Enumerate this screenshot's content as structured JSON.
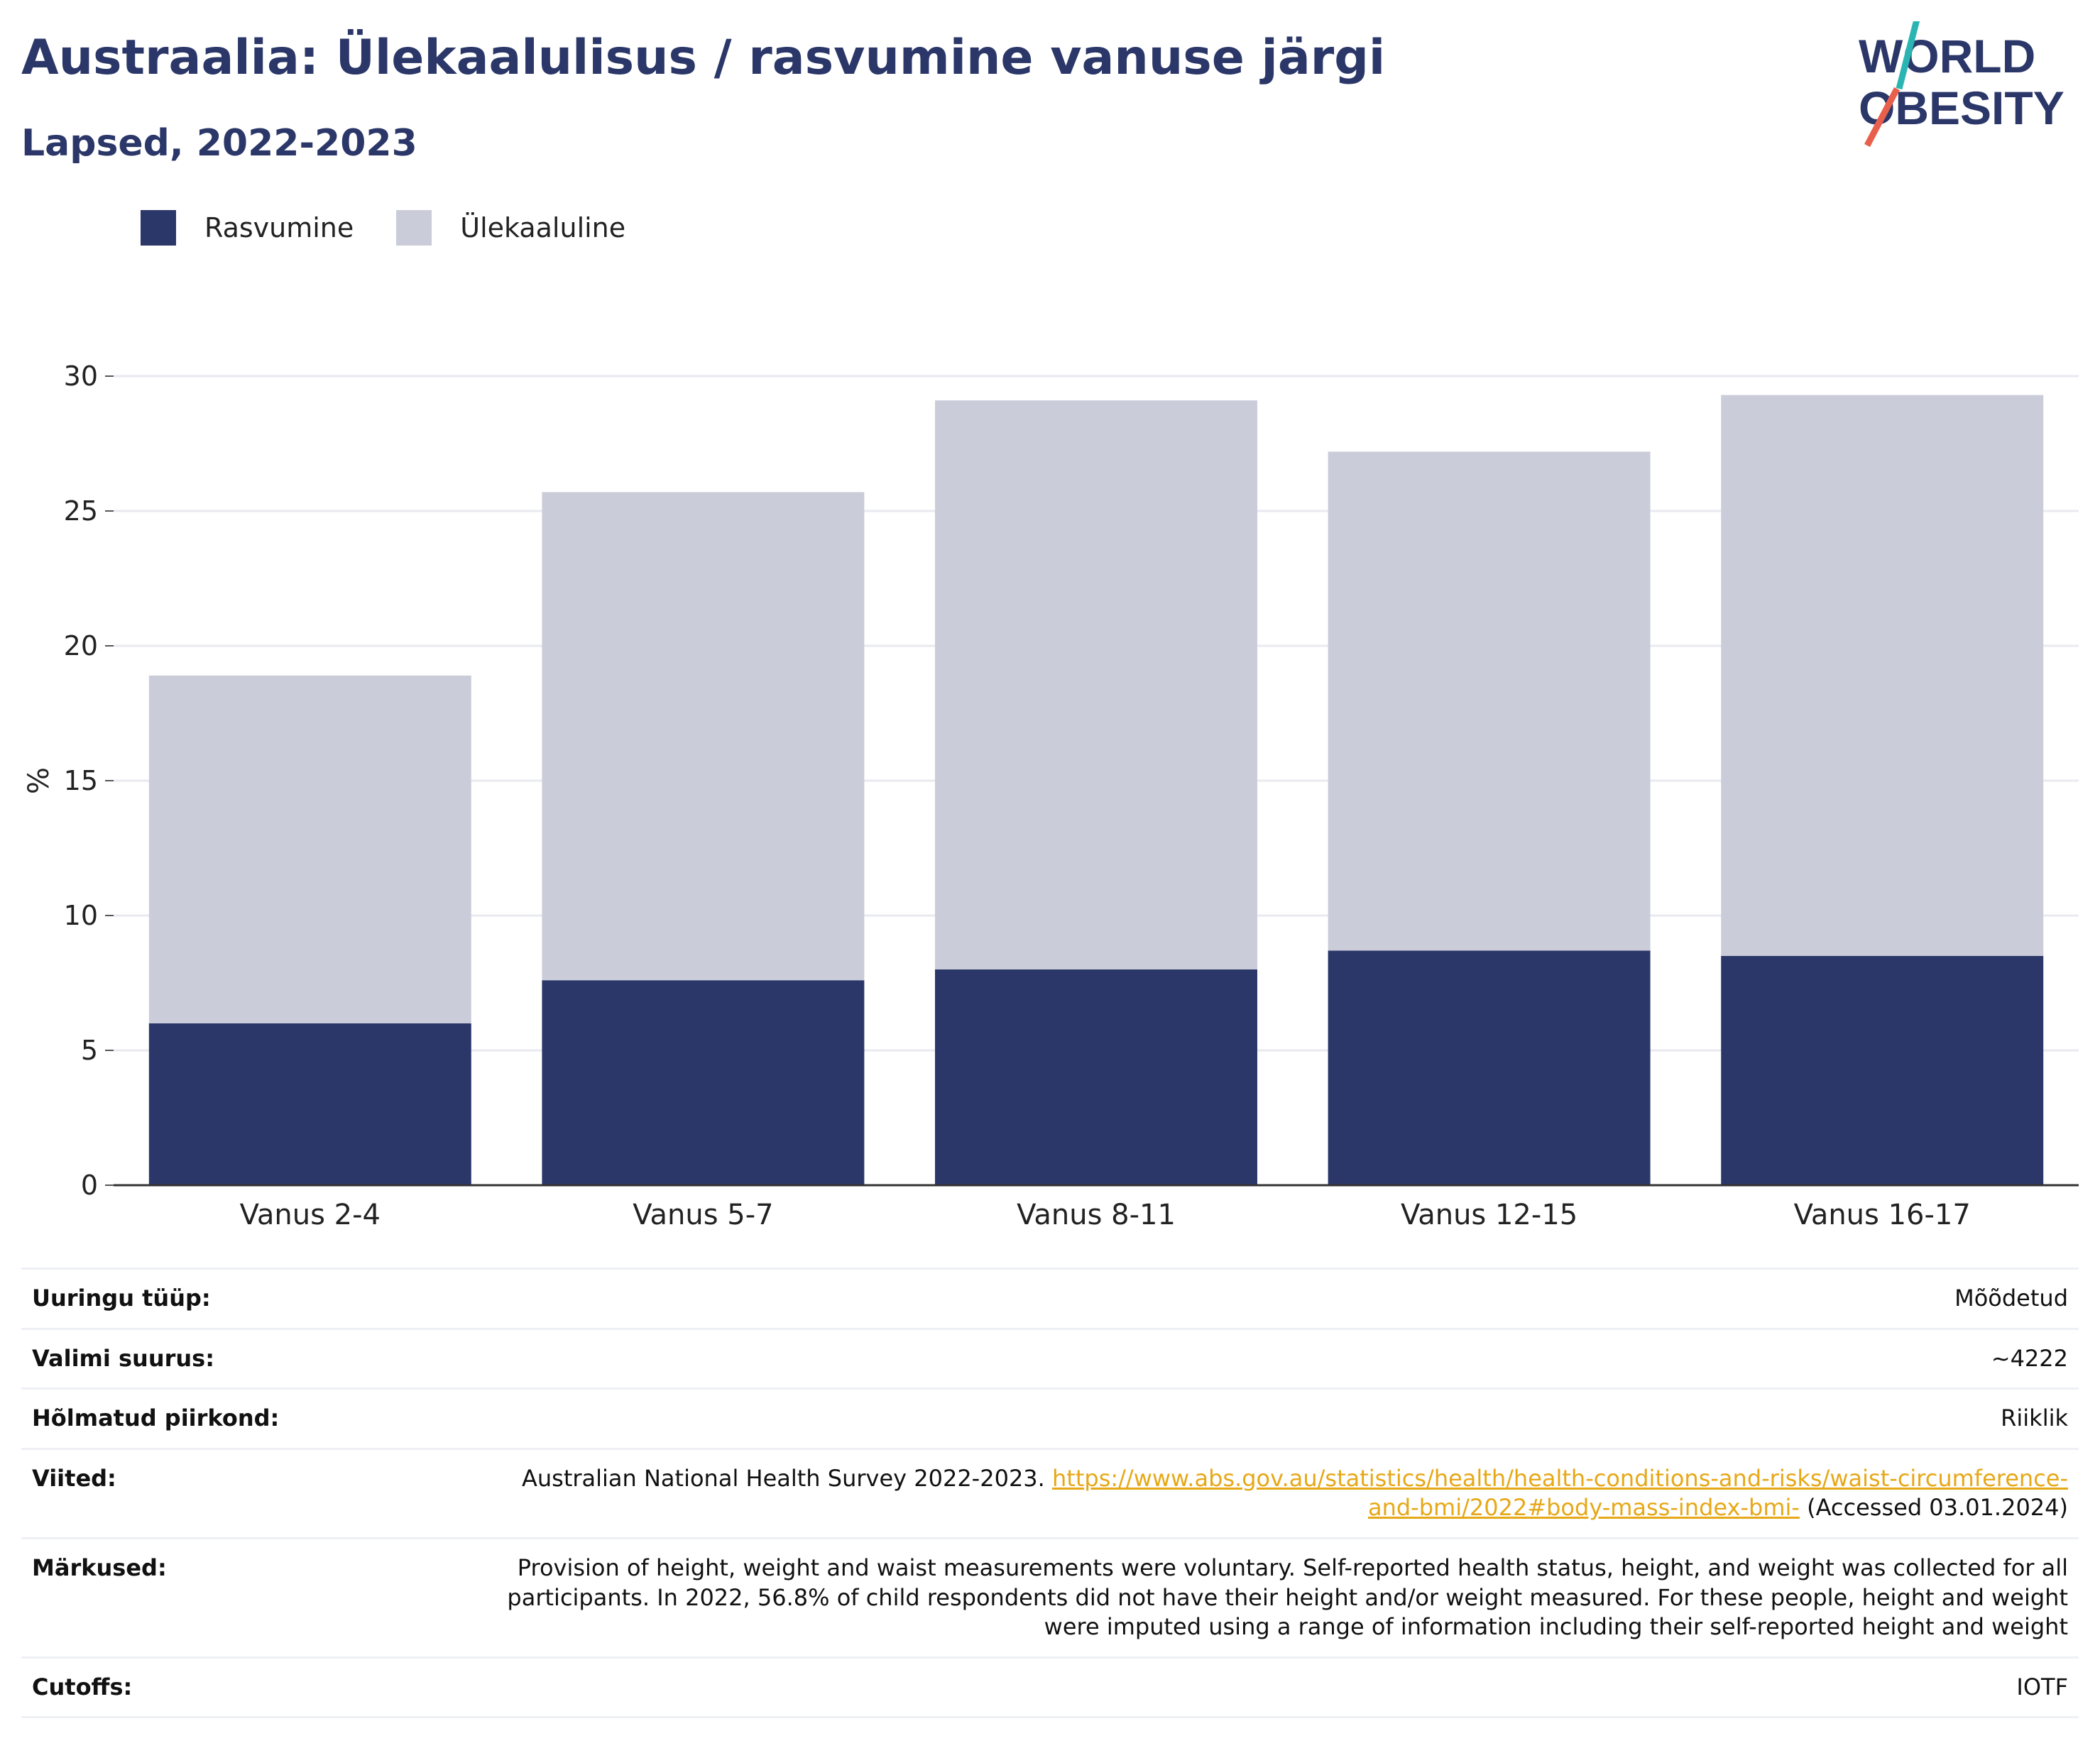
{
  "header": {
    "title": "Austraalia: Ülekaalulisus / rasvumine vanuse järgi",
    "subtitle": "Lapsed, 2022-2023"
  },
  "logo": {
    "line1": "WORLD",
    "line2": "OBESITY",
    "slash_colors": [
      "#2bb5b2",
      "#e8604c"
    ]
  },
  "legend": [
    {
      "label": "Rasvumine",
      "color": "#2b3768"
    },
    {
      "label": "Ülekaaluline",
      "color": "#cacdd9"
    }
  ],
  "chart_data": {
    "type": "bar",
    "stacked": true,
    "categories": [
      "Vanus 2-4",
      "Vanus 5-7",
      "Vanus 8-11",
      "Vanus 12-15",
      "Vanus 16-17"
    ],
    "series": [
      {
        "name": "Rasvumine",
        "color": "#2b3768",
        "values": [
          6.0,
          7.6,
          8.0,
          8.7,
          8.5
        ]
      },
      {
        "name": "Ülekaaluline",
        "color": "#cacdd9",
        "values": [
          12.9,
          18.1,
          21.1,
          18.5,
          20.8
        ]
      }
    ],
    "ylabel": "%",
    "ylim": [
      0,
      30
    ],
    "yticks": [
      0,
      5,
      10,
      15,
      20,
      25,
      30
    ],
    "grid": true
  },
  "meta": [
    {
      "label": "Uuringu tüüp:",
      "value": "Mõõdetud"
    },
    {
      "label": "Valimi suurus:",
      "value": "~4222"
    },
    {
      "label": "Hõlmatud piirkond:",
      "value": "Riiklik"
    },
    {
      "label": "Viited:",
      "value_pre": "Australian National Health Survey 2022-2023.",
      "link": "https://www.abs.gov.au/statistics/health/health-conditions-and-risks/waist-circumference-and-bmi/2022#body-mass-index-bmi-",
      "value_post": "(Accessed 03.01.2024)"
    },
    {
      "label": "Märkused:",
      "value": "Provision of height, weight and waist measurements were voluntary. Self-reported health status, height, and weight was collected for all participants. In 2022, 56.8% of child respondents did not have their height and/or weight measured. For these people, height and weight were imputed using a range of information including their self-reported height and weight"
    },
    {
      "label": "Cutoffs:",
      "value": "IOTF"
    }
  ]
}
